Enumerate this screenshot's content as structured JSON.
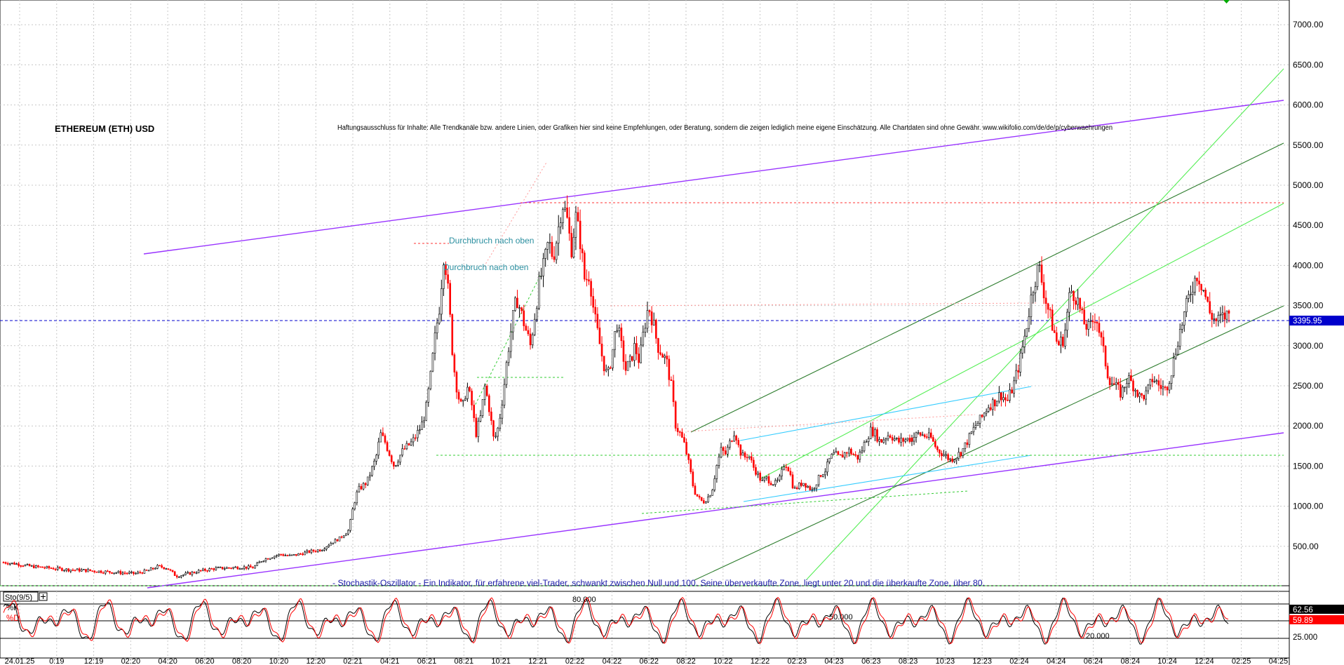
{
  "chart_data": {
    "type": "candlestick",
    "title": "ETHEREUM (ETH) USD",
    "disclaimer": "Haftungsausschluss für Inhalte: Alle Trendkanäle bzw. andere Linien, oder Grafiken hier sind keine Empfehlungen, oder Beratung, sondern die zeigen lediglich meine eigene Einschätzung. Alle Chartdaten sind ohne Gewähr. www.wikifolio.com/de/de/p/cyberwaehrungen",
    "annotations": [
      "Durchbruch nach oben",
      "Durchbruch nach oben"
    ],
    "stochastic_note": "- Stochastik-Oszillator - Ein Indikator, für erfahrene viel-Trader, schwankt zwischen Null und 100. Seine überverkaufte Zone, liegt unter 20 und die überkaufte Zone, über 80.",
    "current_price_label": "3395.95",
    "y_ticks": [
      "500.00",
      "1000.00",
      "1500.00",
      "2000.00",
      "2500.00",
      "3000.00",
      "3500.00",
      "4000.00",
      "4500.00",
      "5000.00",
      "5500.00",
      "6000.00",
      "6500.00",
      "7000.00"
    ],
    "x_ticks": [
      "24.01.25",
      "0:19",
      "12:19",
      "02:20",
      "04:20",
      "06:20",
      "08:20",
      "10:20",
      "12:20",
      "02:21",
      "04:21",
      "06:21",
      "08:21",
      "10:21",
      "12:21",
      "02:22",
      "04:22",
      "06:22",
      "08:22",
      "10:22",
      "12:22",
      "02:23",
      "04:23",
      "06:23",
      "08:23",
      "10:23",
      "12:23",
      "02:24",
      "04:24",
      "06:24",
      "08:24",
      "10:24",
      "12:24",
      "02:25",
      "04:25"
    ],
    "ylim": [
      0,
      7400
    ],
    "price_path": [
      [
        0,
        300
      ],
      [
        0.015,
        280
      ],
      [
        0.03,
        250
      ],
      [
        0.05,
        230
      ],
      [
        0.07,
        210
      ],
      [
        0.09,
        200
      ],
      [
        0.11,
        185
      ],
      [
        0.13,
        170
      ],
      [
        0.145,
        160
      ],
      [
        0.16,
        200
      ],
      [
        0.17,
        250
      ],
      [
        0.18,
        230
      ],
      [
        0.19,
        130
      ],
      [
        0.2,
        150
      ],
      [
        0.215,
        190
      ],
      [
        0.23,
        220
      ],
      [
        0.245,
        230
      ],
      [
        0.26,
        240
      ],
      [
        0.275,
        235
      ],
      [
        0.285,
        330
      ],
      [
        0.295,
        370
      ],
      [
        0.305,
        400
      ],
      [
        0.315,
        380
      ],
      [
        0.325,
        400
      ],
      [
        0.335,
        430
      ],
      [
        0.35,
        460
      ],
      [
        0.36,
        540
      ],
      [
        0.37,
        600
      ],
      [
        0.38,
        700
      ],
      [
        0.385,
        1000
      ],
      [
        0.39,
        1200
      ],
      [
        0.4,
        1300
      ],
      [
        0.41,
        1600
      ],
      [
        0.415,
        1900
      ],
      [
        0.42,
        1800
      ],
      [
        0.43,
        1500
      ],
      [
        0.44,
        1700
      ],
      [
        0.45,
        1800
      ],
      [
        0.46,
        2000
      ],
      [
        0.465,
        2200
      ],
      [
        0.47,
        2600
      ],
      [
        0.475,
        3100
      ],
      [
        0.48,
        3500
      ],
      [
        0.485,
        4200
      ],
      [
        0.49,
        3600
      ],
      [
        0.495,
        2800
      ],
      [
        0.5,
        2400
      ],
      [
        0.505,
        2200
      ],
      [
        0.51,
        2500
      ],
      [
        0.515,
        2300
      ],
      [
        0.52,
        1900
      ],
      [
        0.525,
        2100
      ],
      [
        0.53,
        2500
      ],
      [
        0.535,
        2200
      ],
      [
        0.54,
        1800
      ],
      [
        0.545,
        2000
      ],
      [
        0.55,
        2400
      ],
      [
        0.555,
        2900
      ],
      [
        0.56,
        3300
      ],
      [
        0.565,
        3600
      ],
      [
        0.57,
        3400
      ],
      [
        0.575,
        3200
      ],
      [
        0.58,
        3000
      ],
      [
        0.585,
        3400
      ],
      [
        0.59,
        3800
      ],
      [
        0.595,
        4000
      ],
      [
        0.6,
        4300
      ],
      [
        0.605,
        4100
      ],
      [
        0.61,
        4400
      ],
      [
        0.615,
        4800
      ],
      [
        0.62,
        4600
      ],
      [
        0.625,
        4200
      ],
      [
        0.63,
        4600
      ],
      [
        0.635,
        4300
      ],
      [
        0.64,
        3800
      ],
      [
        0.645,
        3900
      ],
      [
        0.65,
        3400
      ],
      [
        0.655,
        3100
      ],
      [
        0.66,
        2800
      ],
      [
        0.665,
        2600
      ],
      [
        0.67,
        2900
      ],
      [
        0.675,
        3300
      ],
      [
        0.68,
        3000
      ],
      [
        0.685,
        2700
      ],
      [
        0.69,
        2800
      ],
      [
        0.695,
        3000
      ],
      [
        0.7,
        2800
      ],
      [
        0.705,
        3200
      ],
      [
        0.71,
        3500
      ],
      [
        0.715,
        3300
      ],
      [
        0.72,
        3000
      ],
      [
        0.725,
        2900
      ],
      [
        0.73,
        2800
      ],
      [
        0.735,
        2500
      ],
      [
        0.74,
        2000
      ],
      [
        0.745,
        1900
      ],
      [
        0.75,
        1750
      ],
      [
        0.755,
        1500
      ],
      [
        0.76,
        1200
      ],
      [
        0.765,
        1100
      ],
      [
        0.77,
        1050
      ],
      [
        0.775,
        1100
      ],
      [
        0.78,
        1200
      ],
      [
        0.785,
        1500
      ],
      [
        0.79,
        1700
      ],
      [
        0.795,
        1650
      ],
      [
        0.8,
        1800
      ],
      [
        0.805,
        1950
      ],
      [
        0.81,
        1700
      ],
      [
        0.815,
        1600
      ],
      [
        0.82,
        1650
      ],
      [
        0.825,
        1500
      ],
      [
        0.83,
        1400
      ],
      [
        0.835,
        1300
      ],
      [
        0.84,
        1350
      ],
      [
        0.845,
        1300
      ],
      [
        0.85,
        1280
      ],
      [
        0.855,
        1350
      ],
      [
        0.86,
        1550
      ],
      [
        0.865,
        1450
      ],
      [
        0.87,
        1200
      ],
      [
        0.875,
        1250
      ],
      [
        0.88,
        1300
      ],
      [
        0.885,
        1250
      ],
      [
        0.89,
        1200
      ],
      [
        0.895,
        1300
      ],
      [
        0.9,
        1400
      ],
      [
        0.905,
        1450
      ],
      [
        0.91,
        1600
      ],
      [
        0.915,
        1650
      ],
      [
        0.92,
        1600
      ],
      [
        0.925,
        1650
      ],
      [
        0.93,
        1700
      ],
      [
        0.935,
        1650
      ],
      [
        0.94,
        1600
      ],
      [
        0.945,
        1700
      ],
      [
        0.95,
        1850
      ],
      [
        0.955,
        1950
      ],
      [
        0.96,
        1900
      ],
      [
        0.965,
        1800
      ],
      [
        0.97,
        1850
      ],
      [
        0.975,
        1900
      ],
      [
        0.98,
        1850
      ],
      [
        0.985,
        1800
      ],
      [
        0.99,
        1820
      ],
      [
        1.0,
        1850
      ]
    ],
    "price_path_2": [
      [
        0,
        1850
      ],
      [
        0.02,
        1900
      ],
      [
        0.04,
        1880
      ],
      [
        0.06,
        1850
      ],
      [
        0.08,
        1700
      ],
      [
        0.1,
        1650
      ],
      [
        0.12,
        1580
      ],
      [
        0.14,
        1620
      ],
      [
        0.16,
        1700
      ],
      [
        0.18,
        1850
      ],
      [
        0.2,
        2000
      ],
      [
        0.22,
        2100
      ],
      [
        0.24,
        2250
      ],
      [
        0.26,
        2300
      ],
      [
        0.28,
        2400
      ],
      [
        0.3,
        2300
      ],
      [
        0.32,
        2500
      ],
      [
        0.34,
        2800
      ],
      [
        0.36,
        3200
      ],
      [
        0.38,
        3700
      ],
      [
        0.4,
        4000
      ],
      [
        0.42,
        3600
      ],
      [
        0.44,
        3300
      ],
      [
        0.46,
        3000
      ],
      [
        0.48,
        3100
      ],
      [
        0.5,
        3700
      ],
      [
        0.52,
        3600
      ],
      [
        0.54,
        3300
      ],
      [
        0.56,
        3200
      ],
      [
        0.58,
        3400
      ],
      [
        0.6,
        3000
      ],
      [
        0.62,
        2600
      ],
      [
        0.64,
        2500
      ],
      [
        0.66,
        2400
      ],
      [
        0.68,
        2600
      ],
      [
        0.7,
        2500
      ],
      [
        0.72,
        2350
      ],
      [
        0.74,
        2400
      ],
      [
        0.76,
        2600
      ],
      [
        0.78,
        2500
      ],
      [
        0.8,
        2450
      ],
      [
        0.82,
        2700
      ],
      [
        0.84,
        3100
      ],
      [
        0.86,
        3400
      ],
      [
        0.88,
        3700
      ],
      [
        0.9,
        3900
      ],
      [
        0.92,
        3700
      ],
      [
        0.94,
        3400
      ],
      [
        0.96,
        3300
      ],
      [
        0.98,
        3350
      ],
      [
        1.0,
        3396
      ]
    ],
    "stochastic": {
      "k_label": "%K",
      "d_label": "%D",
      "indicator_label": "Sto(9/5)",
      "k_value": "62.56",
      "d_value": "59.89",
      "levels": [
        "80.000",
        "50.000",
        "20.000",
        "25.000"
      ]
    }
  }
}
